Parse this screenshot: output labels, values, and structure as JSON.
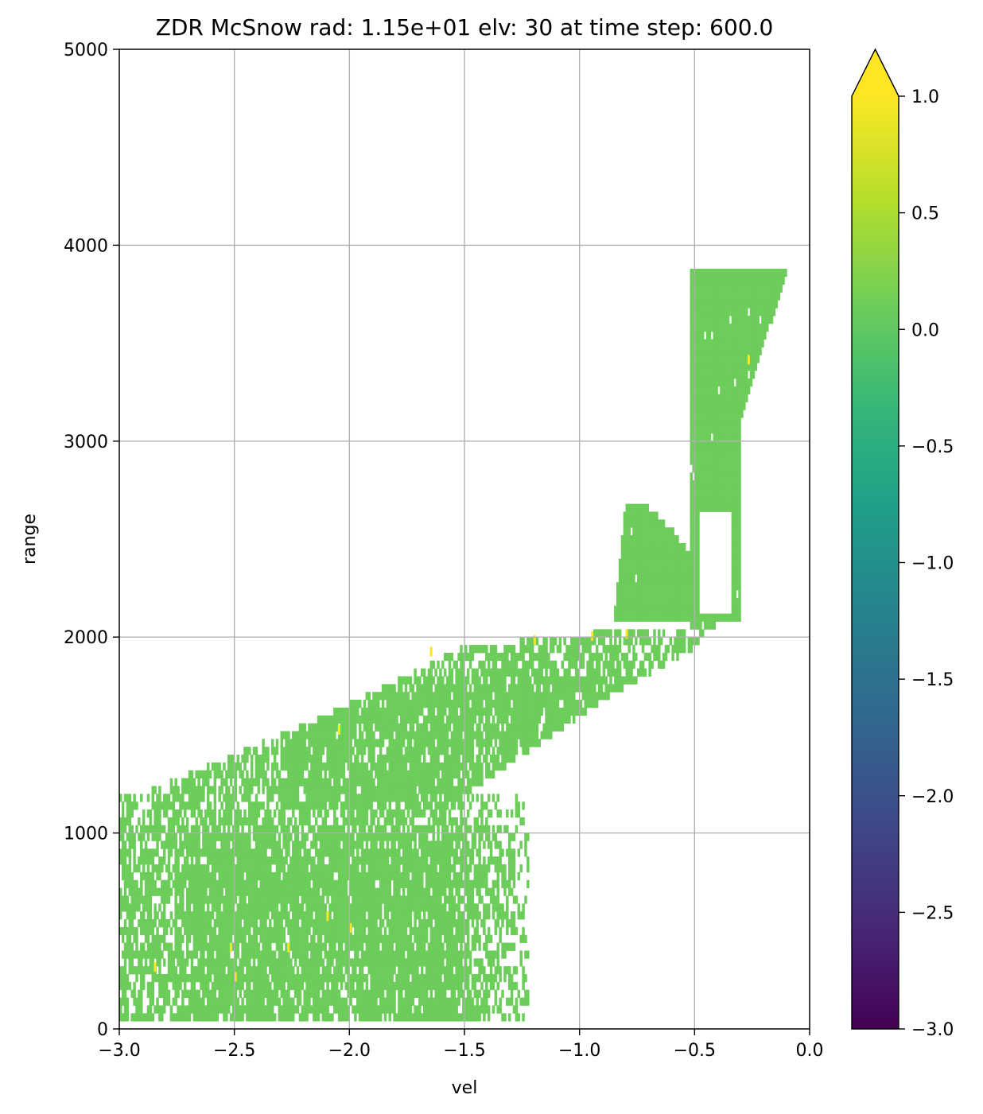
{
  "chart_data": {
    "type": "heatmap",
    "title": "ZDR McSnow rad: 1.15e+01 elv: 30 at time step: 600.0",
    "xlabel": "vel",
    "ylabel": "range",
    "xlim": [
      -3.0,
      0.0
    ],
    "ylim": [
      0,
      5000
    ],
    "xticks": [
      -3.0,
      -2.5,
      -2.0,
      -1.5,
      -1.0,
      -0.5,
      0.0
    ],
    "xtick_labels": [
      "−3.0",
      "−2.5",
      "−2.0",
      "−1.5",
      "−1.0",
      "−0.5",
      "0.0"
    ],
    "yticks": [
      0,
      1000,
      2000,
      3000,
      4000,
      5000
    ],
    "ytick_labels": [
      "0",
      "1000",
      "2000",
      "3000",
      "4000",
      "5000"
    ],
    "grid": true,
    "colormap": "viridis",
    "dominant_value": 0.25,
    "dominant_color": "#6ccd5a",
    "high_outlier_color": "#fde725",
    "colorbar": {
      "min": -3.0,
      "max": 1.0,
      "extend": "max",
      "ticks": [
        1.0,
        0.5,
        0.0,
        -0.5,
        -1.0,
        -1.5,
        -2.0,
        -2.5,
        -3.0
      ],
      "tick_labels": [
        "1.0",
        "0.5",
        "0.0",
        "−0.5",
        "−1.0",
        "−1.5",
        "−2.0",
        "−2.5",
        "−3.0"
      ],
      "stops": [
        "#440154",
        "#482878",
        "#3e4989",
        "#31688e",
        "#26828e",
        "#1f9e89",
        "#35b779",
        "#6ece58",
        "#b5de2b",
        "#fde725"
      ]
    },
    "regions": [
      {
        "label": "low-range broad band",
        "x0": -3.0,
        "x1": -1.22,
        "y0": 0,
        "y1": 1200
      },
      {
        "label": "diagonal band",
        "polygon": [
          [
            -2.85,
            1000
          ],
          [
            -1.5,
            1200
          ],
          [
            -1.0,
            1600
          ],
          [
            -0.8,
            1750
          ],
          [
            -0.5,
            1950
          ],
          [
            -0.45,
            2030
          ],
          [
            -0.95,
            2020
          ],
          [
            -1.5,
            1950
          ],
          [
            -2.1,
            1600
          ],
          [
            -2.9,
            1200
          ]
        ]
      },
      {
        "label": "mid bulb",
        "polygon": [
          [
            -0.85,
            2100
          ],
          [
            -0.8,
            2700
          ],
          [
            -0.7,
            2660
          ],
          [
            -0.6,
            2550
          ],
          [
            -0.5,
            2400
          ],
          [
            -0.5,
            2080
          ]
        ]
      },
      {
        "label": "upper column",
        "polygon": [
          [
            -0.52,
            2020
          ],
          [
            -0.52,
            3870
          ],
          [
            -0.1,
            3870
          ],
          [
            -0.3,
            3100
          ],
          [
            -0.3,
            2650
          ],
          [
            -0.3,
            2100
          ]
        ]
      }
    ],
    "highlights": [
      {
        "x": -2.85,
        "y": 300
      },
      {
        "x": -2.5,
        "y": 250
      },
      {
        "x": -2.52,
        "y": 400
      },
      {
        "x": -2.27,
        "y": 400
      },
      {
        "x": -2.1,
        "y": 560
      },
      {
        "x": -2.05,
        "y": 1510
      },
      {
        "x": -2.0,
        "y": 500
      },
      {
        "x": -1.65,
        "y": 1910
      },
      {
        "x": -1.2,
        "y": 1970
      },
      {
        "x": -0.95,
        "y": 1990
      },
      {
        "x": -0.8,
        "y": 2000
      },
      {
        "x": -0.27,
        "y": 3400
      }
    ]
  }
}
